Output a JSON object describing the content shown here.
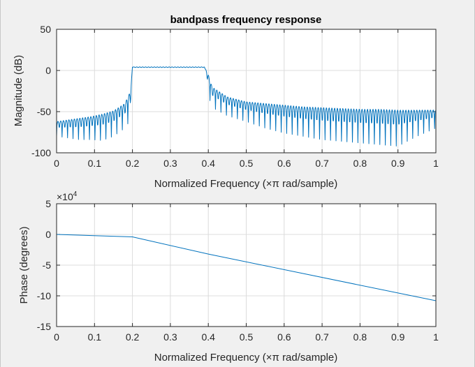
{
  "chart_data": [
    {
      "type": "line",
      "title": "bandpass frequency response",
      "xlabel": "Normalized Frequency  (×π rad/sample)",
      "ylabel": "Magnitude (dB)",
      "xlim": [
        0,
        1
      ],
      "ylim": [
        -100,
        50
      ],
      "xticks": [
        "0",
        "0.1",
        "0.2",
        "0.3",
        "0.4",
        "0.5",
        "0.6",
        "0.7",
        "0.8",
        "0.9",
        "1"
      ],
      "yticks": [
        "-100",
        "-50",
        "0",
        "50"
      ],
      "grid": true,
      "color": "#0072bd",
      "series": [
        {
          "x": [
            0,
            0.03,
            0.06,
            0.09,
            0.12,
            0.15,
            0.18,
            0.195,
            0.2,
            0.25,
            0.3,
            0.35,
            0.39,
            0.4,
            0.41,
            0.45,
            0.5,
            0.55,
            0.6,
            0.65,
            0.7,
            0.75,
            0.8,
            0.85,
            0.9,
            0.95,
            1.0
          ],
          "values": [
            -62,
            -60,
            -58,
            -56,
            -53,
            -49,
            -40,
            -25,
            4,
            4,
            4,
            4,
            4,
            -5,
            -20,
            -32,
            -38,
            -40,
            -42,
            -44,
            -45,
            -46,
            -47,
            -47,
            -48,
            -48,
            -48
          ],
          "notch_depth": [
            -80,
            -82,
            -84,
            -84,
            -85,
            -80,
            -70,
            -60,
            4,
            4,
            4,
            4,
            4,
            -30,
            -45,
            -55,
            -62,
            -70,
            -76,
            -80,
            -84,
            -86,
            -88,
            -90,
            -92,
            -80,
            -70
          ]
        }
      ]
    },
    {
      "type": "line",
      "title": "",
      "xlabel": "Normalized Frequency  (×π rad/sample)",
      "ylabel": "Phase (degrees)",
      "xlim": [
        0,
        1
      ],
      "ylim": [
        -15,
        5
      ],
      "exponent_label": "×10",
      "exponent_power": "4",
      "xticks": [
        "0",
        "0.1",
        "0.2",
        "0.3",
        "0.4",
        "0.5",
        "0.6",
        "0.7",
        "0.8",
        "0.9",
        "1"
      ],
      "yticks": [
        "-15",
        "-10",
        "-5",
        "0",
        "5"
      ],
      "grid": true,
      "color": "#0072bd",
      "series": [
        {
          "x": [
            0,
            0.2,
            0.4,
            1.0
          ],
          "values": [
            0,
            -0.4,
            -3.2,
            -10.8
          ]
        }
      ]
    }
  ]
}
